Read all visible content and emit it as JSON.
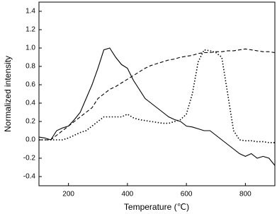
{
  "chart_data": {
    "type": "line",
    "x_label": "Temperature (℃)",
    "y_label": "Normalized intensity",
    "x": [
      100,
      120,
      140,
      160,
      180,
      200,
      220,
      240,
      260,
      280,
      300,
      320,
      340,
      360,
      380,
      400,
      420,
      440,
      460,
      480,
      500,
      520,
      540,
      560,
      580,
      600,
      620,
      640,
      660,
      680,
      700,
      720,
      740,
      760,
      780,
      800,
      820,
      840,
      860,
      880,
      900
    ],
    "series": [
      {
        "color": "#000000",
        "dash": "solid",
        "values": [
          0.03,
          0.02,
          0.0,
          0.1,
          0.13,
          0.15,
          0.22,
          0.3,
          0.45,
          0.6,
          0.78,
          0.98,
          1.0,
          0.9,
          0.82,
          0.78,
          0.65,
          0.55,
          0.45,
          0.4,
          0.35,
          0.3,
          0.25,
          0.22,
          0.2,
          0.15,
          0.14,
          0.12,
          0.1,
          0.1,
          0.05,
          0.0,
          -0.05,
          -0.1,
          -0.15,
          -0.18,
          -0.15,
          -0.2,
          -0.18,
          -0.2,
          -0.28
        ]
      },
      {
        "color": "#000000",
        "dash": "dashed",
        "values": [
          0.0,
          0.0,
          0.0,
          0.05,
          0.1,
          0.15,
          0.2,
          0.25,
          0.3,
          0.35,
          0.45,
          0.5,
          0.55,
          0.58,
          0.62,
          0.66,
          0.7,
          0.74,
          0.78,
          0.81,
          0.83,
          0.85,
          0.87,
          0.88,
          0.9,
          0.91,
          0.92,
          0.94,
          0.95,
          0.95,
          0.96,
          0.96,
          0.97,
          0.97,
          0.98,
          0.99,
          0.98,
          0.97,
          0.96,
          0.96,
          0.95
        ]
      },
      {
        "color": "#000000",
        "dash": "dotted",
        "values": [
          0.0,
          0.0,
          0.0,
          0.0,
          0.0,
          0.02,
          0.05,
          0.08,
          0.1,
          0.15,
          0.2,
          0.25,
          0.25,
          0.25,
          0.25,
          0.28,
          0.24,
          0.22,
          0.21,
          0.2,
          0.19,
          0.18,
          0.18,
          0.2,
          0.22,
          0.28,
          0.5,
          0.85,
          0.98,
          0.97,
          0.95,
          0.9,
          0.5,
          0.1,
          0.0,
          -0.01,
          -0.01,
          -0.02,
          -0.02,
          -0.03,
          -0.03
        ]
      }
    ],
    "xlim": [
      100,
      900
    ],
    "xticks": [
      200,
      400,
      600,
      800
    ],
    "ylim": [
      -0.5,
      1.5
    ],
    "yticks": [
      -0.4,
      -0.2,
      {
        "value": 0,
        "label": "0.0"
      },
      0.2,
      0.4,
      0.6,
      0.8,
      {
        "value": 1,
        "label": "1.0"
      },
      1.2,
      1.4
    ],
    "grid": false
  }
}
